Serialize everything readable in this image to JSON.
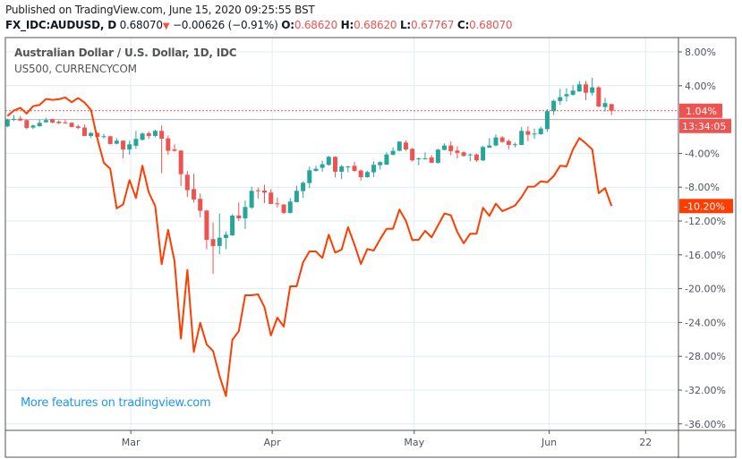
{
  "header": {
    "published": "Published on TradingView.com, June 15, 2020 09:25:55 BST",
    "symbol": "FX_IDC:AUDUSD, D",
    "last": "0.68070",
    "direction_icon": "triangle-down-icon",
    "change": "−0.00626 (−0.91%)",
    "o_label": "O:",
    "o": "0.68620",
    "h_label": "H:",
    "h": "0.68620",
    "l_label": "L:",
    "l": "0.67767",
    "c_label": "C:",
    "c": "0.68070"
  },
  "legend": {
    "main": "Australian Dollar / U.S. Dollar, 1D, IDC",
    "compare": "US500, CURRENCYCOM"
  },
  "watermark": "More features on tradingview.com",
  "colors": {
    "up": "#26a69a",
    "down": "#ef5350",
    "compare_line": "#ff3d00",
    "grid": "#e1ecf2",
    "watermark": "#2196f3"
  },
  "chart_data": {
    "type": "candlestick+line",
    "yaxis": {
      "unit": "%",
      "ylim": [
        -37,
        9.5
      ],
      "ticks": [
        "8.00%",
        "4.00%",
        "-4.00%",
        "-8.00%",
        "-12.00%",
        "-16.00%",
        "-20.00%",
        "-24.00%",
        "-28.00%",
        "-32.00%",
        "-36.00%"
      ],
      "tick_values": [
        8,
        4,
        -4,
        -8,
        -12,
        -16,
        -20,
        -24,
        -28,
        -32,
        -36
      ]
    },
    "xaxis": {
      "ticks": [
        "Mar",
        "Apr",
        "May",
        "Jun",
        "22"
      ],
      "tick_bar_index": [
        19.2,
        41.2,
        63.3,
        84.3,
        99.3
      ]
    },
    "grid": true,
    "last_value_labels": {
      "main": "1.04%",
      "countdown": "13:34:05",
      "compare": "-10.20%"
    },
    "candles_ohlc_pct": [
      [
        -0.81,
        0.1,
        -0.9,
        0.0
      ],
      [
        0.0,
        0.53,
        -0.18,
        0.07
      ],
      [
        0.11,
        0.42,
        -0.2,
        -0.11
      ],
      [
        -0.07,
        0.0,
        -1.16,
        -0.99
      ],
      [
        -0.95,
        -0.6,
        -1.13,
        -0.71
      ],
      [
        -0.78,
        0.0,
        -0.85,
        -0.39
      ],
      [
        -0.32,
        0.2,
        -0.4,
        -0.07
      ],
      [
        0.04,
        0.1,
        -0.45,
        -0.35
      ],
      [
        -0.25,
        -0.1,
        -0.5,
        -0.42
      ],
      [
        -0.35,
        0.0,
        -0.5,
        -0.42
      ],
      [
        -0.39,
        -0.3,
        -0.95,
        -0.88
      ],
      [
        -0.81,
        -0.6,
        -1.1,
        -0.99
      ],
      [
        -0.95,
        -0.6,
        -1.94,
        -1.94
      ],
      [
        -1.94,
        -1.45,
        -2.2,
        -1.59
      ],
      [
        -1.59,
        -1.5,
        -2.15,
        -2.05
      ],
      [
        -2.01,
        -1.7,
        -2.25,
        -1.98
      ],
      [
        -1.98,
        -1.9,
        -2.95,
        -2.89
      ],
      [
        -2.86,
        -2.2,
        -2.95,
        -2.5
      ],
      [
        -2.5,
        -2.5,
        -4.59,
        -3.53
      ],
      [
        -3.53,
        -2.5,
        -4.16,
        -2.93
      ],
      [
        -3.1,
        -1.34,
        -3.46,
        -2.29
      ],
      [
        -2.4,
        -1.5,
        -2.5,
        -1.66
      ],
      [
        -1.62,
        -1.4,
        -2.29,
        -1.94
      ],
      [
        -1.94,
        -1.2,
        -2.1,
        -1.34
      ],
      [
        -1.34,
        -0.71,
        -6.35,
        -2.26
      ],
      [
        -2.22,
        -1.87,
        -4.16,
        -3.7
      ],
      [
        -3.53,
        -2.93,
        -3.8,
        -3.7
      ],
      [
        -3.67,
        -3.6,
        -7.87,
        -6.46
      ],
      [
        -6.53,
        -6.1,
        -9.17,
        -8.36
      ],
      [
        -8.22,
        -6.42,
        -9.81,
        -9.45
      ],
      [
        -9.38,
        -8.75,
        -11.57,
        -10.79
      ],
      [
        -10.76,
        -10.7,
        -15.34,
        -14.22
      ],
      [
        -14.14,
        -12.17,
        -18.24,
        -14.96
      ],
      [
        -14.96,
        -11.11,
        -15.91,
        -13.97
      ],
      [
        -14.0,
        -13.23,
        -15.34,
        -13.62
      ],
      [
        -13.69,
        -11.2,
        -13.76,
        -11.36
      ],
      [
        -11.36,
        -9.81,
        -12.0,
        -11.68
      ],
      [
        -11.68,
        -9.59,
        -12.95,
        -10.34
      ],
      [
        -10.41,
        -7.94,
        -10.58,
        -8.43
      ],
      [
        -8.36,
        -8.04,
        -9.35,
        -8.47
      ],
      [
        -8.4,
        -7.72,
        -9.88,
        -8.64
      ],
      [
        -8.64,
        -8.22,
        -10.0,
        -9.98
      ],
      [
        -9.91,
        -9.24,
        -10.41,
        -10.02
      ],
      [
        -10.05,
        -10.0,
        -11.18,
        -11.04
      ],
      [
        -11.04,
        -9.28,
        -11.11,
        -9.7
      ],
      [
        -9.77,
        -7.83,
        -9.77,
        -8.43
      ],
      [
        -8.47,
        -7.3,
        -9.24,
        -7.48
      ],
      [
        -7.51,
        -5.57,
        -8.11,
        -6.0
      ],
      [
        -6.07,
        -5.47,
        -6.17,
        -5.82
      ],
      [
        -5.71,
        -4.87,
        -6.17,
        -5.29
      ],
      [
        -5.36,
        -4.3,
        -5.47,
        -4.41
      ],
      [
        -4.41,
        -4.35,
        -6.81,
        -6.17
      ],
      [
        -6.17,
        -5.36,
        -7.05,
        -5.54
      ],
      [
        -5.57,
        -5.47,
        -6.24,
        -5.54
      ],
      [
        -5.47,
        -5.01,
        -6.17,
        -6.07
      ],
      [
        -6.03,
        -5.9,
        -7.23,
        -6.81
      ],
      [
        -6.81,
        -6.07,
        -6.88,
        -6.21
      ],
      [
        -6.24,
        -4.94,
        -6.81,
        -5.36
      ],
      [
        -5.4,
        -4.94,
        -5.93,
        -5.04
      ],
      [
        -5.33,
        -3.88,
        -5.36,
        -4.13
      ],
      [
        -4.16,
        -3.28,
        -4.23,
        -3.7
      ],
      [
        -3.7,
        -2.58,
        -3.72,
        -2.61
      ],
      [
        -2.72,
        -2.47,
        -3.7,
        -3.53
      ],
      [
        -3.46,
        -3.36,
        -4.94,
        -4.83
      ],
      [
        -4.66,
        -4.48,
        -5.4,
        -4.59
      ],
      [
        -4.66,
        -3.88,
        -4.73,
        -4.59
      ],
      [
        -4.48,
        -4.2,
        -5.11,
        -5.11
      ],
      [
        -5.11,
        -3.46,
        -5.22,
        -3.56
      ],
      [
        -3.6,
        -2.82,
        -3.63,
        -3.07
      ],
      [
        -3.07,
        -2.57,
        -4.23,
        -3.74
      ],
      [
        -3.67,
        -3.17,
        -4.59,
        -3.95
      ],
      [
        -3.88,
        -3.77,
        -4.41,
        -4.3
      ],
      [
        -4.23,
        -4.02,
        -4.94,
        -4.13
      ],
      [
        -4.13,
        -4.02,
        -5.01,
        -4.83
      ],
      [
        -4.83,
        -3.11,
        -4.9,
        -3.25
      ],
      [
        -3.32,
        -2.19,
        -3.35,
        -3.07
      ],
      [
        -3.07,
        -1.76,
        -3.17,
        -2.12
      ],
      [
        -2.12,
        -1.94,
        -2.75,
        -2.65
      ],
      [
        -2.54,
        -2.36,
        -3.53,
        -3.0
      ],
      [
        -2.96,
        -2.72,
        -3.28,
        -2.93
      ],
      [
        -3.0,
        -0.88,
        -3.0,
        -1.34
      ],
      [
        -1.38,
        -0.81,
        -2.57,
        -1.8
      ],
      [
        -1.76,
        -1.06,
        -2.29,
        -1.66
      ],
      [
        -1.73,
        -0.81,
        -1.8,
        -1.06
      ],
      [
        -1.13,
        1.23,
        -1.45,
        0.99
      ],
      [
        0.99,
        2.36,
        0.53,
        2.22
      ],
      [
        2.19,
        3.63,
        1.76,
        2.65
      ],
      [
        2.75,
        3.7,
        2.12,
        3.0
      ],
      [
        2.93,
        4.06,
        2.82,
        3.42
      ],
      [
        3.32,
        4.55,
        3.28,
        4.16
      ],
      [
        4.16,
        4.59,
        2.29,
        3.17
      ],
      [
        3.17,
        4.94,
        2.82,
        3.81
      ],
      [
        3.81,
        3.95,
        1.45,
        1.55
      ],
      [
        1.48,
        2.57,
        0.95,
        1.94
      ],
      [
        1.83,
        1.83,
        0.53,
        1.04
      ]
    ],
    "compare_series": {
      "name": "US500",
      "values_pct": [
        0.42,
        1.06,
        1.38,
        0.71,
        1.59,
        1.73,
        2.43,
        2.33,
        2.4,
        2.61,
        2.05,
        2.54,
        2.01,
        1.13,
        -2.29,
        -5.11,
        -5.82,
        -10.51,
        -10.05,
        -7.16,
        -9.28,
        -5.47,
        -8.64,
        -10.23,
        -17.11,
        -13.05,
        -16.75,
        -25.9,
        -17.79,
        -27.48,
        -24.03,
        -26.6,
        -27.38,
        -30.31,
        -32.71,
        -26.07,
        -25.02,
        -20.78,
        -20.78,
        -20.68,
        -22.19,
        -25.54,
        -23.43,
        -24.49,
        -19.72,
        -19.72,
        -16.9,
        -15.6,
        -15.6,
        -16.37,
        -13.62,
        -15.74,
        -15.39,
        -12.74,
        -14.78,
        -17.08,
        -15.32,
        -15.49,
        -14.15,
        -12.92,
        -12.92,
        -10.66,
        -11.97,
        -14.25,
        -14.22,
        -13.16,
        -13.93,
        -12.52,
        -11.11,
        -11.32,
        -13.3,
        -14.64,
        -13.51,
        -13.51,
        -10.44,
        -11.39,
        -9.95,
        -10.83,
        -10.51,
        -10.16,
        -9.17,
        -7.94,
        -7.94,
        -7.3,
        -7.41,
        -6.7,
        -5.47,
        -5.54,
        -3.53,
        -2.19,
        -2.82,
        -3.53,
        -8.71,
        -8.11,
        -10.23
      ]
    }
  }
}
